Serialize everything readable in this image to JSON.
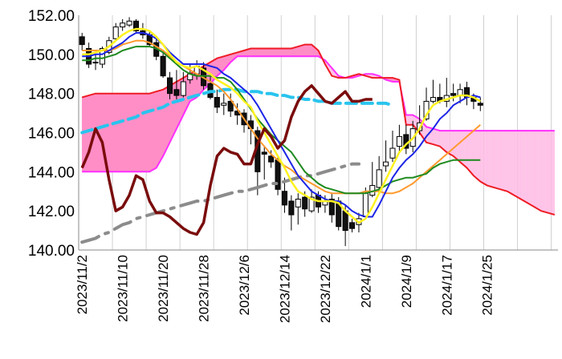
{
  "chart_data": {
    "type": "line",
    "title": "",
    "xlabel": "",
    "ylabel": "",
    "ylim": [
      140,
      152
    ],
    "yticks": [
      "140.00",
      "142.00",
      "144.00",
      "146.00",
      "148.00",
      "150.00",
      "152.00"
    ],
    "xticks": [
      "2023/11/2",
      "2023/11/10",
      "2023/11/20",
      "2023/11/28",
      "2023/12/6",
      "2023/12/14",
      "2023/12/22",
      "2024/1/1",
      "2024/1/9",
      "2024/1/17",
      "2024/1/25"
    ],
    "grid": "vertical",
    "legend": "none",
    "candles": {
      "open": [
        150.9,
        150.3,
        149.6,
        149.5,
        150.1,
        150.8,
        151.4,
        151.5,
        151.7,
        151.2,
        151.0,
        150.6,
        149.9,
        148.8,
        148.2,
        147.9,
        148.7,
        149.0,
        149.3,
        148.5,
        147.8,
        147.4,
        147.6,
        147.1,
        147.0,
        146.6,
        146.1,
        145.0,
        144.8,
        144.6,
        143.0,
        142.5,
        142.2,
        142.7,
        142.0,
        142.8,
        142.3,
        142.6,
        142.5,
        142.0,
        141.4,
        141.3,
        141.7,
        142.8,
        143.2,
        144.3,
        144.7,
        145.3,
        145.9,
        145.3,
        146.1,
        146.7,
        147.6,
        147.8,
        147.6,
        148.0,
        147.9,
        148.3,
        147.8,
        147.5
      ],
      "high": [
        151.1,
        150.6,
        150.0,
        150.4,
        150.9,
        151.6,
        151.8,
        151.9,
        151.8,
        151.6,
        151.2,
        150.9,
        150.1,
        149.1,
        149.2,
        149.1,
        149.5,
        149.7,
        149.6,
        148.9,
        148.2,
        148.0,
        148.0,
        147.5,
        147.2,
        146.9,
        146.3,
        145.3,
        145.1,
        144.8,
        143.7,
        142.8,
        142.9,
        143.0,
        143.1,
        143.0,
        142.8,
        142.9,
        142.7,
        142.3,
        141.6,
        141.9,
        143.2,
        144.5,
        144.8,
        145.6,
        146.1,
        146.4,
        146.4,
        146.6,
        147.4,
        148.3,
        148.7,
        148.5,
        148.8,
        148.5,
        148.5,
        148.6,
        148.0,
        147.8
      ],
      "low": [
        150.2,
        149.3,
        149.2,
        149.3,
        150.0,
        150.7,
        151.2,
        151.4,
        151.1,
        150.8,
        150.4,
        149.7,
        148.8,
        147.7,
        147.7,
        147.8,
        148.5,
        148.7,
        148.2,
        147.7,
        147.0,
        146.9,
        146.8,
        146.4,
        146.0,
        145.4,
        142.8,
        143.6,
        144.2,
        142.8,
        141.9,
        141.0,
        141.3,
        141.7,
        141.9,
        141.9,
        141.9,
        141.4,
        141.0,
        140.2,
        140.9,
        140.9,
        141.6,
        142.7,
        143.0,
        144.0,
        144.5,
        145.0,
        144.9,
        145.0,
        145.9,
        146.6,
        147.5,
        147.5,
        147.3,
        147.6,
        147.5,
        147.4,
        147.2,
        147.1
      ],
      "close": [
        150.5,
        149.5,
        149.6,
        150.3,
        150.7,
        151.4,
        151.6,
        151.7,
        151.2,
        151.0,
        150.5,
        149.9,
        148.9,
        148.0,
        147.9,
        148.6,
        149.0,
        149.4,
        148.4,
        147.8,
        147.3,
        147.5,
        147.1,
        146.9,
        146.4,
        146.2,
        144.0,
        144.9,
        144.5,
        143.1,
        142.3,
        141.8,
        142.6,
        142.1,
        142.7,
        142.2,
        142.5,
        141.8,
        141.2,
        141.0,
        141.1,
        141.6,
        142.9,
        143.3,
        144.1,
        144.5,
        145.2,
        145.8,
        145.2,
        146.2,
        146.5,
        147.6,
        147.8,
        147.6,
        147.9,
        147.9,
        148.2,
        147.8,
        147.6,
        147.4
      ]
    },
    "series": [
      {
        "values": [
          150.0,
          150.0,
          150.1,
          150.2,
          150.4,
          150.7,
          151.0,
          151.2,
          151.3,
          151.3,
          151.2,
          150.9,
          150.5,
          150.0,
          149.6,
          149.4,
          149.3,
          149.4,
          149.2,
          149.0,
          148.7,
          148.5,
          148.3,
          148.0,
          147.6,
          147.3,
          146.6,
          146.0,
          145.4,
          144.8,
          144.2,
          143.5,
          143.0,
          142.8,
          142.6,
          142.5,
          142.5,
          142.5,
          142.4,
          142.0,
          141.7,
          141.4,
          141.6,
          142.2,
          142.9,
          143.6,
          144.3,
          145.0,
          145.4,
          145.7,
          146.2,
          146.9,
          147.4,
          147.6,
          147.7,
          147.8,
          147.9,
          147.9,
          147.8,
          147.6
        ]
      },
      {
        "values": [
          149.9,
          149.9,
          150.0,
          150.0,
          150.2,
          150.4,
          150.6,
          150.9,
          151.1,
          151.1,
          151.0,
          150.8,
          150.5,
          150.1,
          149.8,
          149.5,
          149.5,
          149.5,
          149.5,
          149.4,
          149.3,
          149.0,
          148.8,
          148.5,
          148.2,
          147.9,
          147.4,
          146.8,
          146.2,
          145.6,
          145.0,
          144.4,
          143.8,
          143.4,
          143.0,
          142.8,
          142.6,
          142.5,
          142.5,
          142.3,
          142.0,
          141.8,
          141.7,
          141.7,
          142.3,
          143.0,
          143.7,
          144.2,
          144.6,
          144.9,
          145.3,
          145.8,
          146.2,
          146.7,
          147.0,
          147.4,
          147.6,
          147.8,
          147.9,
          147.8
        ]
      },
      {
        "values": [
          149.7,
          149.7,
          149.8,
          149.8,
          149.9,
          150.0,
          150.2,
          150.3,
          150.4,
          150.4,
          150.4,
          150.3,
          150.1,
          149.8,
          149.5,
          149.2,
          149.0,
          148.9,
          148.9,
          148.9,
          148.8,
          148.8,
          148.6,
          148.2,
          147.7,
          147.2,
          146.7,
          146.3,
          145.9,
          145.6,
          145.3,
          145.0,
          144.5,
          144.0,
          143.7,
          143.4,
          143.2,
          143.1,
          143.0,
          142.9,
          142.9,
          142.9,
          142.9,
          143.0,
          143.1,
          143.3,
          143.5,
          143.6,
          143.7,
          143.7,
          143.8,
          143.9,
          144.2,
          144.4,
          144.5,
          144.6,
          144.6,
          144.6,
          144.6,
          144.6
        ]
      },
      {
        "values": [
          150.2,
          150.2,
          150.2,
          150.2,
          150.2,
          150.3,
          150.5,
          150.6,
          150.7,
          150.7,
          150.6,
          150.4,
          150.2,
          149.9,
          149.6,
          149.4,
          149.2,
          149.0,
          148.8,
          148.6,
          148.4,
          148.1,
          147.7,
          147.2,
          146.7,
          146.2,
          145.7,
          145.3,
          144.9,
          144.6,
          144.3,
          144.1,
          143.8,
          143.6,
          143.4,
          143.2,
          143.0,
          142.9,
          142.9,
          142.9,
          142.9,
          142.9,
          143.0,
          143.0,
          143.0,
          142.9,
          142.9,
          143.0,
          143.2,
          143.4,
          143.7,
          144.0,
          144.3,
          144.6,
          144.9,
          145.2,
          145.5,
          145.8,
          146.1,
          146.4
        ]
      },
      {
        "values": [
          144.2,
          145.0,
          146.2,
          145.5,
          143.6,
          142.0,
          142.2,
          142.8,
          143.8,
          143.6,
          142.5,
          141.9,
          141.9,
          141.7,
          141.4,
          141.1,
          140.9,
          140.8,
          141.4,
          143.3,
          144.8,
          145.2,
          145.0,
          144.9,
          144.4,
          144.4,
          145.4,
          146.2,
          145.8,
          145.2,
          145.6,
          146.8,
          147.6,
          148.1,
          148.4,
          148.0,
          147.6,
          147.5,
          147.8,
          148.1,
          147.6,
          147.6,
          147.7,
          147.7
        ]
      },
      {
        "values": [
          140.4,
          140.5,
          140.6,
          140.8,
          140.9,
          141.1,
          141.3,
          141.4,
          141.6,
          141.7,
          141.8,
          141.9,
          142.0,
          142.1,
          142.2,
          142.3,
          142.4,
          142.5,
          142.5,
          142.6,
          142.7,
          142.8,
          142.9,
          143.0,
          143.0,
          143.1,
          143.2,
          143.3,
          143.4,
          143.4,
          143.5,
          143.6,
          143.7,
          143.8,
          143.8,
          143.9,
          144.0,
          144.1,
          144.2,
          144.3,
          144.4,
          144.4
        ]
      },
      {
        "values": [
          146.0,
          146.1,
          146.2,
          146.3,
          146.4,
          146.5,
          146.6,
          146.7,
          146.8,
          147.0,
          147.1,
          147.2,
          147.3,
          147.5,
          147.6,
          147.7,
          147.8,
          147.9,
          148.0,
          148.1,
          148.1,
          148.2,
          148.2,
          148.2,
          148.1,
          148.1,
          148.1,
          148.0,
          148.0,
          147.9,
          147.9,
          147.8,
          147.8,
          147.7,
          147.7,
          147.6,
          147.6,
          147.5,
          147.5,
          147.5,
          147.5,
          147.5,
          147.5,
          147.5,
          147.5,
          147.5,
          147.4
        ]
      },
      {
        "values": [
          147.8,
          147.9,
          148.0,
          148.0,
          148.0,
          148.0,
          148.0,
          148.0,
          148.0,
          148.0,
          148.0,
          148.1,
          148.2,
          148.4,
          148.6,
          148.8,
          149.0,
          149.2,
          149.4,
          149.6,
          149.8,
          149.9,
          150.0,
          150.1,
          150.2,
          150.3,
          150.3,
          150.3,
          150.3,
          150.3,
          150.3,
          150.3,
          150.4,
          150.5,
          150.5,
          150.2,
          149.5,
          148.9,
          148.8,
          148.8,
          148.9,
          149.0,
          148.9,
          148.8,
          148.8,
          148.8,
          148.8,
          148.7,
          146.4,
          146.4,
          146.0,
          145.5,
          145.4,
          145.3,
          145.0,
          144.8,
          144.5,
          144.2,
          143.8,
          143.5,
          143.3,
          143.2,
          143.1,
          143.0,
          142.8,
          142.6,
          142.4,
          142.2,
          142.0,
          141.9,
          141.8
        ]
      },
      {
        "values": [
          144.0,
          144.0,
          144.0,
          144.0,
          144.0,
          144.0,
          144.0,
          144.0,
          144.0,
          144.0,
          144.0,
          144.2,
          144.8,
          145.5,
          146.2,
          146.9,
          147.6,
          147.8,
          148.2,
          148.5,
          148.9,
          149.2,
          149.6,
          149.9,
          149.9,
          149.9,
          149.9,
          149.9,
          149.9,
          149.9,
          149.9,
          149.9,
          149.9,
          149.9,
          149.9,
          149.9,
          149.7,
          149.3,
          148.9,
          148.8,
          148.8,
          148.9,
          149.0,
          149.0,
          148.9,
          148.7,
          148.6,
          148.6,
          146.9,
          146.9,
          146.7,
          146.3,
          146.2,
          146.1,
          146.1,
          146.1,
          146.1,
          146.1,
          146.1,
          146.1,
          146.1,
          146.1,
          146.1,
          146.1,
          146.1,
          146.1,
          146.1,
          146.1,
          146.1,
          146.1,
          146.1
        ]
      }
    ]
  }
}
